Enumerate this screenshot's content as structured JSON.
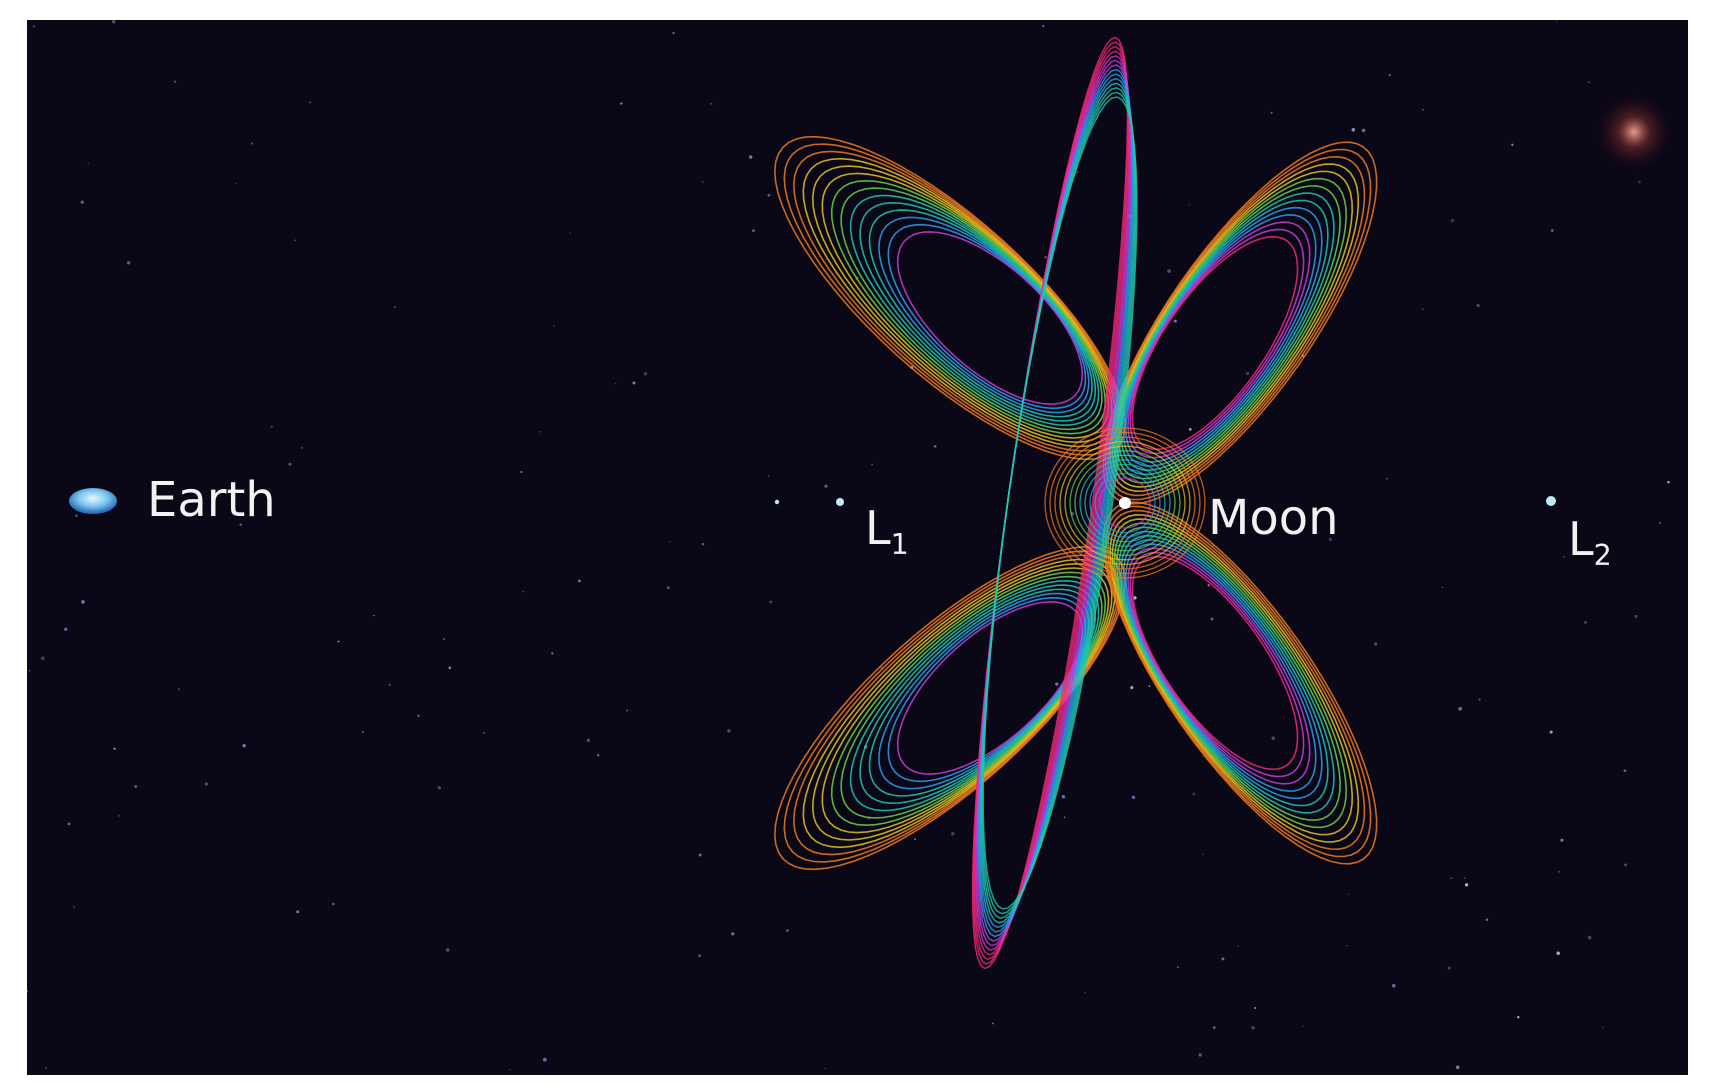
{
  "labels": {
    "earth": "Earth",
    "l1_main": "L",
    "l1_sub": "1",
    "moon": "Moon",
    "l2_main": "L",
    "l2_sub": "2"
  },
  "colors": {
    "background": "#0a0716",
    "frame": "#ffffff",
    "earth": "#5ab4e6",
    "lagrange_point": "#bfe8f5",
    "label_text": "#f2f2f2",
    "orbit_palette": [
      "#e0283c",
      "#f07a1e",
      "#e8c21e",
      "#6ad14a",
      "#1ec8b0",
      "#2aa0f0",
      "#c83cd8",
      "#f0287a"
    ]
  },
  "bodies": [
    "earth",
    "l1",
    "moon",
    "l2"
  ]
}
